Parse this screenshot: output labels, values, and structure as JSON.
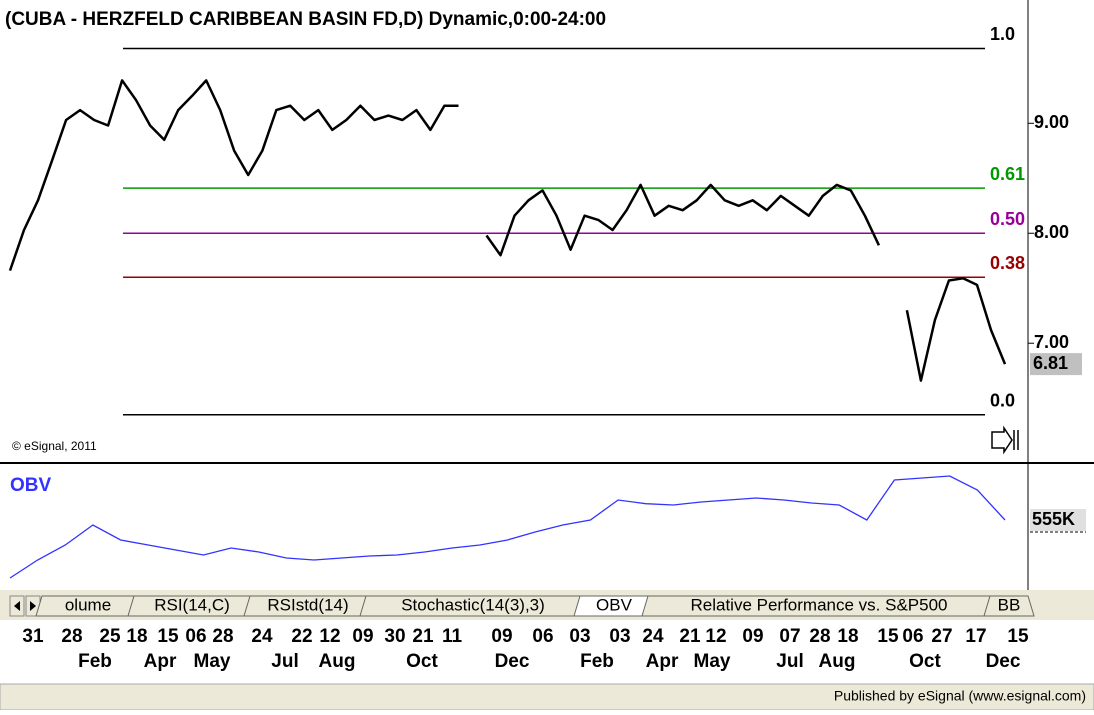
{
  "chart_data": {
    "type": "line",
    "title": "(CUBA - HERZFELD CARIBBEAN BASIN FD,D) Dynamic,0:00-24:00",
    "copyright": "© eSignal, 2011",
    "publisher": "Published by eSignal (www.esignal.com)",
    "ylim": [
      5.92,
      10.03
    ],
    "yticks": [
      {
        "value": 9,
        "label": "9.00"
      },
      {
        "value": 8,
        "label": "8.00"
      },
      {
        "value": 7,
        "label": "7.00"
      }
    ],
    "last_value": 6.81,
    "series": [
      {
        "name": "CUBA",
        "color": "#000000",
        "values": [
          7.66,
          8.03,
          8.3,
          8.66,
          9.03,
          9.12,
          9.03,
          8.98,
          9.39,
          9.21,
          8.98,
          8.85,
          9.12,
          9.25,
          9.39,
          9.12,
          8.75,
          8.53,
          8.75,
          9.12,
          9.16,
          9.03,
          9.12,
          8.94,
          9.03,
          9.16,
          9.03,
          9.07,
          9.03,
          9.12,
          8.94,
          9.16,
          9.16,
          null,
          7.98,
          7.8,
          8.16,
          8.3,
          8.39,
          8.16,
          7.85,
          8.16,
          8.12,
          8.03,
          8.21,
          8.44,
          8.16,
          8.25,
          8.21,
          8.3,
          8.44,
          8.3,
          8.25,
          8.3,
          8.21,
          8.34,
          8.25,
          8.16,
          8.34,
          8.44,
          8.39,
          8.16,
          7.89,
          null,
          7.3,
          6.66,
          7.21,
          7.57,
          7.59,
          7.53,
          7.12,
          6.81
        ]
      }
    ],
    "fib_levels": [
      {
        "label": "1.0",
        "value": 9.68,
        "color": "#000000"
      },
      {
        "label": "0.61",
        "value": 8.41,
        "color": "#009900"
      },
      {
        "label": "0.50",
        "value": 8.0,
        "color": "#990099"
      },
      {
        "label": "0.38",
        "value": 7.6,
        "color": "#990000"
      },
      {
        "label": "0.0",
        "value": 6.35,
        "color": "#000000"
      }
    ],
    "obv": {
      "name": "OBV",
      "color": "#3333ff",
      "ylim": [
        345,
        705
      ],
      "values": [
        381,
        435,
        480,
        540,
        495,
        480,
        465,
        450,
        471,
        459,
        441,
        435,
        441,
        447,
        450,
        459,
        471,
        480,
        495,
        519,
        540,
        555,
        615,
        604,
        600,
        609,
        615,
        621,
        615,
        606,
        600,
        555,
        675,
        681,
        687,
        645,
        555
      ],
      "last_label": "555K"
    },
    "tabs": [
      "olume",
      "RSI(14,C)",
      "RSIstd(14)",
      "Stochastic(14(3),3)",
      "OBV",
      "Relative Performance vs. S&P500",
      "BB"
    ],
    "x_labels_top": [
      "31",
      "28",
      "25",
      "18",
      "15",
      "06",
      "28",
      "24",
      "22",
      "12",
      "09",
      "30",
      "21",
      "11",
      "09",
      "06",
      "03",
      "03",
      "24",
      "21",
      "12",
      "09",
      "07",
      "28",
      "18",
      "15",
      "06",
      "27",
      "17",
      "15"
    ],
    "x_labels_bottom": [
      "Feb",
      "Apr",
      "May",
      "Jul",
      "Aug",
      "Oct",
      "Dec",
      "Feb",
      "Apr",
      "May",
      "Jul",
      "Aug",
      "Oct",
      "Dec"
    ]
  }
}
